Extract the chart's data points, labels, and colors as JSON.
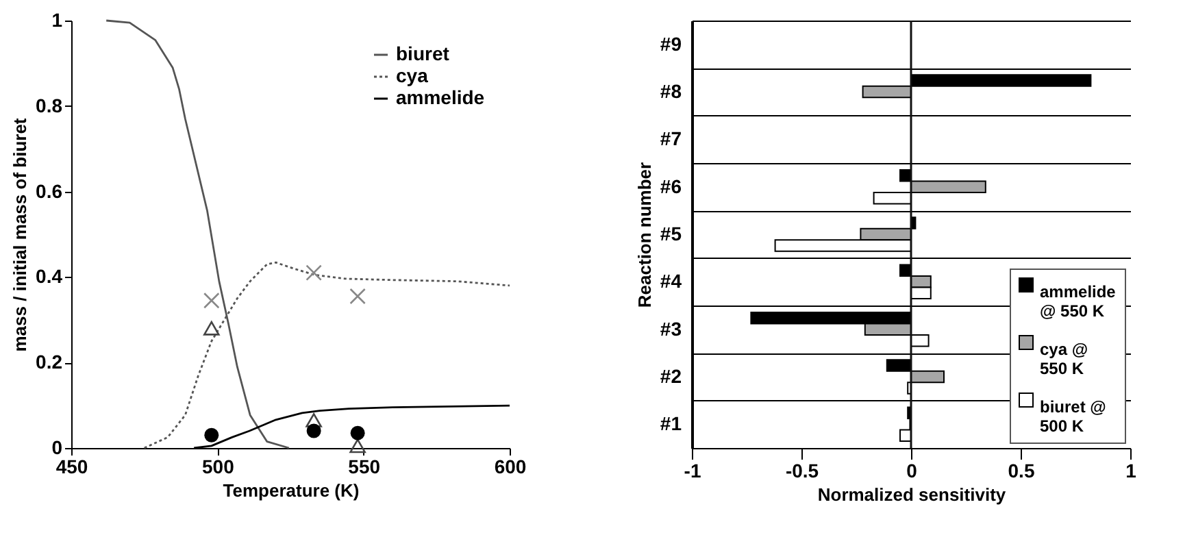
{
  "chart_data": [
    {
      "type": "line",
      "xlabel": "Temperature (K)",
      "ylabel": "mass / initial mass of biuret",
      "xlim": [
        450,
        600
      ],
      "ylim": [
        0,
        1
      ],
      "xticks": [
        450,
        500,
        550,
        600
      ],
      "yticks": [
        0,
        0.2,
        0.4,
        0.6,
        0.8,
        1
      ],
      "legend": "top right",
      "grid": false,
      "series": [
        {
          "name": "biuret",
          "color": "#555555",
          "line_style": "solid",
          "x": [
            462,
            470,
            478.8,
            484.7,
            486.9,
            489,
            496.5,
            500.6,
            503.8,
            506.8,
            511.2,
            517,
            524.5
          ],
          "values": [
            1.0,
            0.995,
            0.954,
            0.89,
            0.84,
            0.77,
            0.556,
            0.39,
            0.29,
            0.19,
            0.077,
            0.015,
            0
          ]
        },
        {
          "name": "cya",
          "color": "#555555",
          "line_style": "dotted",
          "x": [
            475,
            483,
            489,
            493.5,
            498,
            502.4,
            506.8,
            511.2,
            517,
            520,
            526,
            533.3,
            543.7,
            560,
            582,
            600
          ],
          "values": [
            0,
            0.025,
            0.077,
            0.17,
            0.25,
            0.3,
            0.35,
            0.39,
            0.43,
            0.434,
            0.42,
            0.405,
            0.396,
            0.393,
            0.39,
            0.38
          ]
        },
        {
          "name": "ammelide",
          "color": "#000000",
          "line_style": "solid",
          "x": [
            492,
            498,
            505,
            511,
            520,
            529,
            535,
            545,
            560,
            600
          ],
          "values": [
            0,
            0.005,
            0.025,
            0.04,
            0.066,
            0.082,
            0.087,
            0.092,
            0.095,
            0.099
          ]
        },
        {
          "type": "scatter",
          "color": "#888888",
          "marker": "cross",
          "x": [
            498,
            533,
            548
          ],
          "values": [
            0.345,
            0.41,
            0.355
          ]
        },
        {
          "type": "scatter",
          "color": "#444444",
          "marker": "triangle",
          "x": [
            498,
            533,
            548
          ],
          "values": [
            0.28,
            0.065,
            0.005
          ]
        },
        {
          "type": "scatter",
          "color": "#000000",
          "marker": "circle",
          "x": [
            498,
            533,
            548
          ],
          "values": [
            0.03,
            0.04,
            0.035
          ]
        }
      ]
    },
    {
      "type": "bar",
      "orientation": "horizontal",
      "xlabel": "Normalized sensitivity",
      "ylabel": "Reaction number",
      "xlim": [
        -1,
        1
      ],
      "xticks": [
        -1,
        -0.5,
        0,
        0.5,
        1
      ],
      "grid": "y",
      "legend": "bottom right",
      "categories": [
        "#9",
        "#8",
        "#7",
        "#6",
        "#5",
        "#4",
        "#3",
        "#2",
        "#1"
      ],
      "ref_lines": [
        {
          "axis": "x",
          "value": 0,
          "color": "#111111"
        }
      ],
      "series": [
        {
          "name": "ammelide @ 550 K",
          "color": "#000000",
          "values": [
            null,
            0.82,
            null,
            -0.05,
            0.02,
            -0.05,
            -0.73,
            -0.11,
            -0.015
          ]
        },
        {
          "name": "cya  @ 550 K",
          "color": "#a6a6a6",
          "values": [
            null,
            -0.22,
            null,
            0.34,
            -0.23,
            0.09,
            -0.21,
            0.15,
            -0.005
          ]
        },
        {
          "name": "biuret @ 500 K",
          "color": "#ffffff",
          "values": [
            null,
            null,
            null,
            -0.17,
            -0.62,
            0.09,
            0.08,
            -0.015,
            -0.05
          ]
        }
      ]
    }
  ]
}
